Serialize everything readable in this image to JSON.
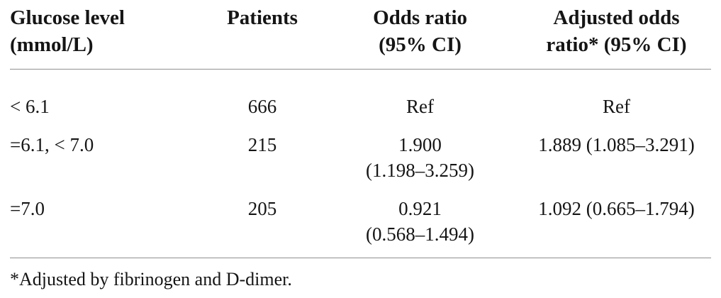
{
  "table": {
    "header": {
      "glucose_line1": "Glucose level",
      "glucose_line2": "(mmol/L)",
      "patients": "Patients",
      "odds_line1": "Odds ratio",
      "odds_line2": "(95% CI)",
      "adj_line1": "Adjusted odds",
      "adj_line2": "ratio* (95% CI)"
    },
    "rows": [
      {
        "glucose": "< 6.1",
        "patients": "666",
        "or_line1": "Ref",
        "or_line2": "",
        "aor": "Ref"
      },
      {
        "glucose": "=6.1, < 7.0",
        "patients": "215",
        "or_line1": "1.900",
        "or_line2": "(1.198–3.259)",
        "aor": "1.889 (1.085–3.291)"
      },
      {
        "glucose": "=7.0",
        "patients": "205",
        "or_line1": "0.921",
        "or_line2": "(0.568–1.494)",
        "aor": "1.092 (0.665–1.794)"
      }
    ]
  },
  "footnote": "*Adjusted by fibrinogen and D-dimer.",
  "colors": {
    "text": "#151515",
    "rule": "#909090",
    "background": "#ffffff"
  }
}
